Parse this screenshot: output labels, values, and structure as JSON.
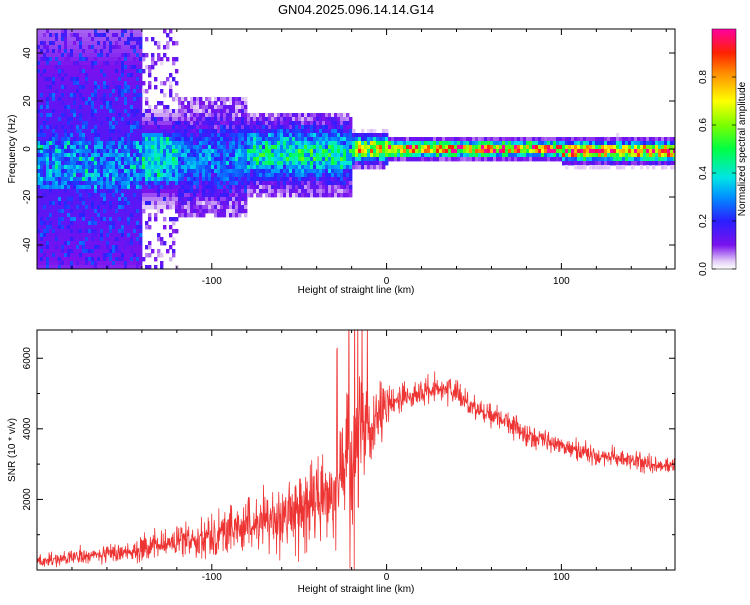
{
  "figure": {
    "title": "GN04.2025.096.14.14.G14"
  },
  "chart_data": [
    {
      "type": "heatmap",
      "title": "",
      "xlabel": "Height of straight line (km)",
      "ylabel": "Frequency (Hz)",
      "xlim": [
        -200,
        165
      ],
      "ylim": [
        -50,
        50
      ],
      "xticks": [
        -100,
        0,
        100
      ],
      "yticks": [
        -40,
        -20,
        0,
        20,
        40
      ],
      "grid": false,
      "colorbar": {
        "label": "Normalized spectral amplitude",
        "range": [
          0,
          1
        ],
        "ticks": [
          0.0,
          0.2,
          0.4,
          0.6,
          0.8
        ],
        "colormap": "rainbow (white → purple → blue → cyan → green → yellow → red → magenta)"
      },
      "features": [
        {
          "x_range": [
            -200,
            -140
          ],
          "center_hz": -6,
          "spread_hz": 45,
          "peak_amplitude": 0.15
        },
        {
          "x_range": [
            -140,
            -80
          ],
          "center_hz": -4,
          "spread_hz": 10,
          "peak_amplitude": 0.25
        },
        {
          "x_range": [
            -80,
            -20
          ],
          "center_hz": -2,
          "spread_hz": 7,
          "peak_amplitude": 0.4
        },
        {
          "x_range": [
            -20,
            0
          ],
          "center_hz": 0,
          "spread_hz": 3,
          "peak_amplitude": 0.7
        },
        {
          "x_range": [
            0,
            100
          ],
          "center_hz": 0,
          "spread_hz": 2,
          "peak_amplitude": 0.95
        },
        {
          "x_range": [
            100,
            165
          ],
          "center_hz": -1,
          "spread_hz": 2.5,
          "peak_amplitude": 0.9
        }
      ]
    },
    {
      "type": "line",
      "title": "",
      "xlabel": "Height of straight line (km)",
      "ylabel": "SNR (10 * v/v)",
      "xlim": [
        -200,
        165
      ],
      "ylim": [
        0,
        6800
      ],
      "xticks": [
        -100,
        0,
        100
      ],
      "yticks": [
        2000,
        4000,
        6000
      ],
      "grid": false,
      "series": [
        {
          "color": "#ee3333",
          "x": [
            -200,
            -180,
            -160,
            -140,
            -120,
            -100,
            -80,
            -60,
            -50,
            -40,
            -30,
            -25,
            -20,
            -15,
            -10,
            -5,
            0,
            5,
            10,
            20,
            30,
            40,
            50,
            60,
            70,
            80,
            90,
            100,
            110,
            120,
            130,
            140,
            150,
            165
          ],
          "y": [
            250,
            350,
            450,
            600,
            800,
            1000,
            1250,
            1500,
            1700,
            1900,
            2300,
            2700,
            3400,
            3700,
            3900,
            4200,
            4600,
            4800,
            4900,
            5000,
            5200,
            5000,
            4600,
            4400,
            4200,
            3800,
            3700,
            3500,
            3400,
            3200,
            3200,
            3100,
            3000,
            2900
          ],
          "noise_amplitude": [
            150,
            200,
            250,
            350,
            400,
            600,
            700,
            900,
            1000,
            1100,
            1400,
            1800,
            2200,
            1600,
            1200,
            900,
            700,
            500,
            400,
            350,
            350,
            350,
            300,
            300,
            300,
            300,
            300,
            250,
            250,
            250,
            250,
            250,
            250,
            250
          ]
        }
      ]
    }
  ]
}
